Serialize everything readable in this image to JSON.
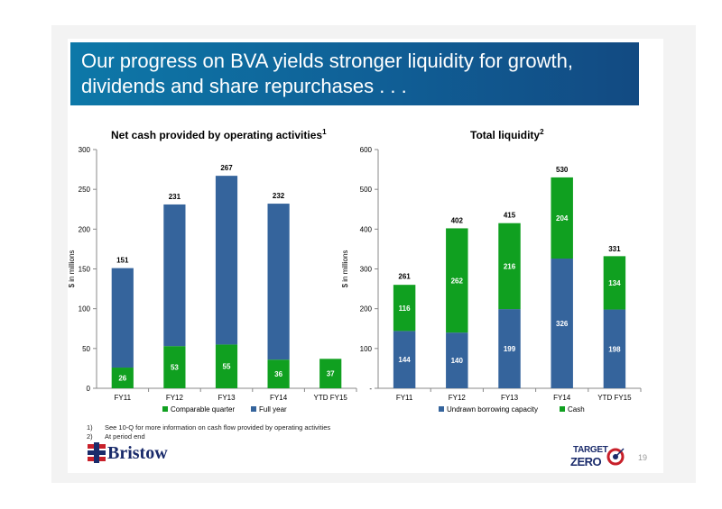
{
  "slide": {
    "title": "Our progress on BVA yields stronger liquidity for growth, dividends and share repurchases . . .",
    "page_number": "19"
  },
  "footnotes": [
    {
      "num": "1)",
      "text": "See 10-Q for more information on cash flow provided by operating activities"
    },
    {
      "num": "2)",
      "text": "At period end"
    }
  ],
  "logos": {
    "bristow": "Bristow",
    "target_zero_line1": "TARGET",
    "target_zero_line2": "ZERO"
  },
  "colors": {
    "blue": "#35649c",
    "green": "#10a020",
    "banner": "#0f6a9e"
  },
  "chart_data": [
    {
      "type": "bar",
      "stacked": true,
      "title": "Net cash provided by operating activities",
      "title_sup": "1",
      "ylabel": "$ in millions",
      "ylim": [
        0,
        300
      ],
      "yticks": [
        0,
        50,
        100,
        150,
        200,
        250,
        300
      ],
      "ytick_labels": [
        "0",
        "50",
        "100",
        "150",
        "200",
        "250",
        "300"
      ],
      "categories": [
        "FY11",
        "FY12",
        "FY13",
        "FY14",
        "YTD FY15"
      ],
      "series": [
        {
          "name": "Comparable quarter",
          "color": "#10a020",
          "values": [
            26,
            53,
            55,
            36,
            37
          ],
          "labels": [
            "26",
            "53",
            "55",
            "36",
            "37"
          ]
        },
        {
          "name": "Full year",
          "color": "#35649c",
          "values": [
            125,
            178,
            212,
            196,
            0
          ],
          "labels": [
            "",
            "",
            "",
            "",
            ""
          ]
        }
      ],
      "totals": [
        151,
        231,
        267,
        232,
        null
      ],
      "total_labels": [
        "151",
        "231",
        "267",
        "232",
        ""
      ],
      "legend": "bottom"
    },
    {
      "type": "bar",
      "stacked": true,
      "title": "Total liquidity",
      "title_sup": "2",
      "ylabel": "$ in millions",
      "ylim": [
        0,
        600
      ],
      "yticks": [
        0,
        100,
        200,
        300,
        400,
        500,
        600
      ],
      "ytick_labels": [
        "-",
        "100",
        "200",
        "300",
        "400",
        "500",
        "600"
      ],
      "categories": [
        "FY11",
        "FY12",
        "FY13",
        "FY14",
        "YTD FY15"
      ],
      "series": [
        {
          "name": "Undrawn borrowing capacity",
          "color": "#35649c",
          "values": [
            144,
            140,
            199,
            326,
            198
          ],
          "labels": [
            "144",
            "140",
            "199",
            "326",
            "198"
          ]
        },
        {
          "name": "Cash",
          "color": "#10a020",
          "values": [
            116,
            262,
            216,
            204,
            134
          ],
          "labels": [
            "116",
            "262",
            "216",
            "204",
            "134"
          ]
        }
      ],
      "totals": [
        261,
        402,
        415,
        530,
        331
      ],
      "total_labels": [
        "261",
        "402",
        "415",
        "530",
        "331"
      ],
      "legend": "bottom"
    }
  ]
}
